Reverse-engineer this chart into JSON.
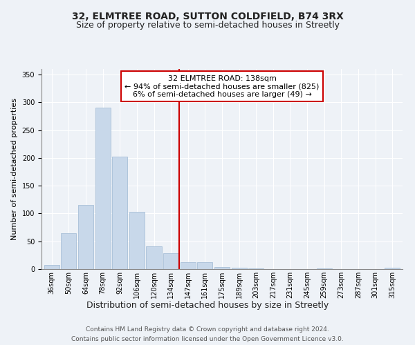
{
  "title": "32, ELMTREE ROAD, SUTTON COLDFIELD, B74 3RX",
  "subtitle": "Size of property relative to semi-detached houses in Streetly",
  "xlabel": "Distribution of semi-detached houses by size in Streetly",
  "ylabel": "Number of semi-detached properties",
  "footer_line1": "Contains HM Land Registry data © Crown copyright and database right 2024.",
  "footer_line2": "Contains public sector information licensed under the Open Government Licence v3.0.",
  "annotation_line1": "32 ELMTREE ROAD: 138sqm",
  "annotation_line2": "← 94% of semi-detached houses are smaller (825)",
  "annotation_line3": "6% of semi-detached houses are larger (49) →",
  "bar_color": "#c8d8ea",
  "bar_edgecolor": "#a8c0d8",
  "vline_color": "#cc0000",
  "vline_x": 7.5,
  "categories": [
    "36sqm",
    "50sqm",
    "64sqm",
    "78sqm",
    "92sqm",
    "106sqm",
    "120sqm",
    "134sqm",
    "147sqm",
    "161sqm",
    "175sqm",
    "189sqm",
    "203sqm",
    "217sqm",
    "231sqm",
    "245sqm",
    "259sqm",
    "273sqm",
    "287sqm",
    "301sqm",
    "315sqm"
  ],
  "values": [
    8,
    65,
    115,
    290,
    202,
    103,
    41,
    28,
    12,
    13,
    4,
    2,
    1,
    0,
    0,
    0,
    1,
    0,
    0,
    0,
    3
  ],
  "ylim": [
    0,
    360
  ],
  "yticks": [
    0,
    50,
    100,
    150,
    200,
    250,
    300,
    350
  ],
  "background_color": "#eef2f7",
  "plot_background": "#eef2f7",
  "title_fontsize": 10,
  "subtitle_fontsize": 9,
  "annotation_fontsize": 8,
  "ylabel_fontsize": 8,
  "xlabel_fontsize": 9,
  "tick_fontsize": 7,
  "footer_fontsize": 6.5
}
